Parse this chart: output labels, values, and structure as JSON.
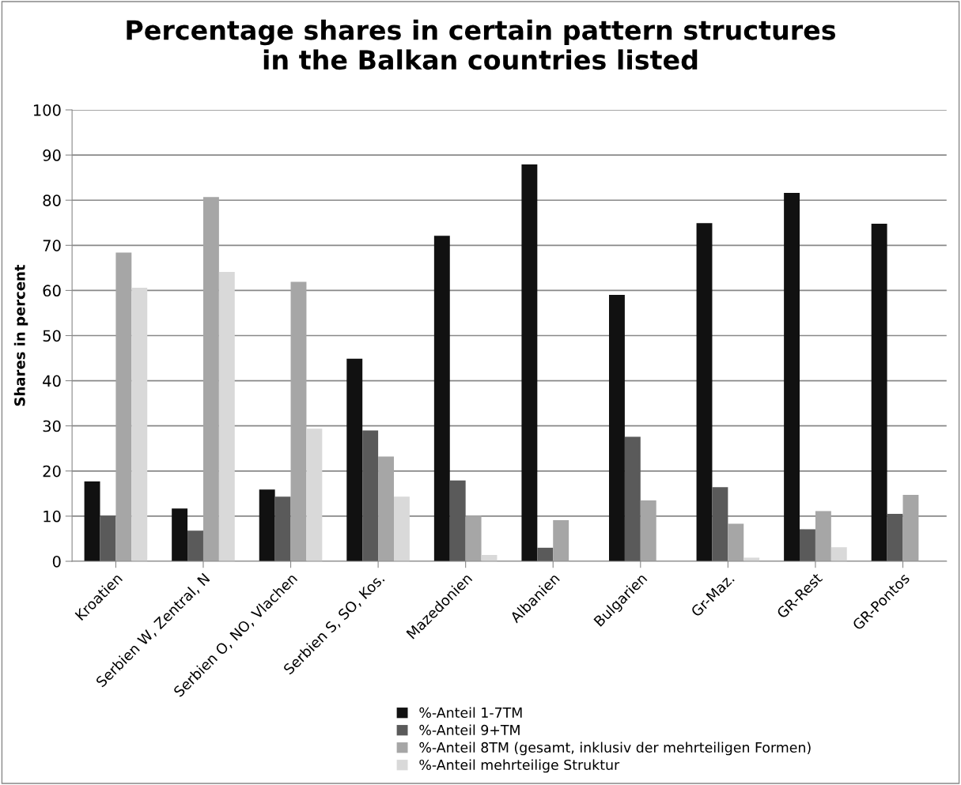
{
  "chart_data": {
    "type": "bar",
    "title": "Percentage shares in certain pattern structures\nin the Balkan countries listed",
    "ylabel": "Shares in percent",
    "categories": [
      "Kroatien",
      "Serbien W, Zentral, N",
      "Serbien O, NO, Vlachen",
      "Serbien S, SO, Kos.",
      "Mazedonien",
      "Albanien",
      "Bulgarien",
      "Gr-Maz.",
      "GR-Rest",
      "GR-Pontos"
    ],
    "series": [
      {
        "name": "%-Anteil 1-7TM",
        "color": "#111111",
        "values": [
          17.7,
          11.7,
          15.9,
          44.9,
          72.1,
          87.9,
          59.0,
          74.9,
          81.6,
          74.8
        ]
      },
      {
        "name": "%-Anteil 9+TM",
        "color": "#5a5a5a",
        "values": [
          10.1,
          6.8,
          14.3,
          29.0,
          17.9,
          3.0,
          27.6,
          16.4,
          7.1,
          10.5
        ]
      },
      {
        "name": "%-Anteil 8TM (gesamt, inklusiv der mehrteiligen Formen)",
        "color": "#a6a6a6",
        "values": [
          68.4,
          80.7,
          61.9,
          23.2,
          10.1,
          9.1,
          13.5,
          8.3,
          11.1,
          14.7
        ]
      },
      {
        "name": "%-Anteil mehrteilige Struktur",
        "color": "#d9d9d9",
        "values": [
          60.6,
          64.1,
          29.4,
          14.3,
          1.4,
          null,
          null,
          0.8,
          3.1,
          null
        ]
      }
    ],
    "ylim": [
      0,
      100
    ],
    "yticks": [
      0,
      10,
      20,
      30,
      40,
      50,
      60,
      70,
      80,
      90,
      100
    ],
    "grid": "y",
    "legend": "bottom"
  }
}
